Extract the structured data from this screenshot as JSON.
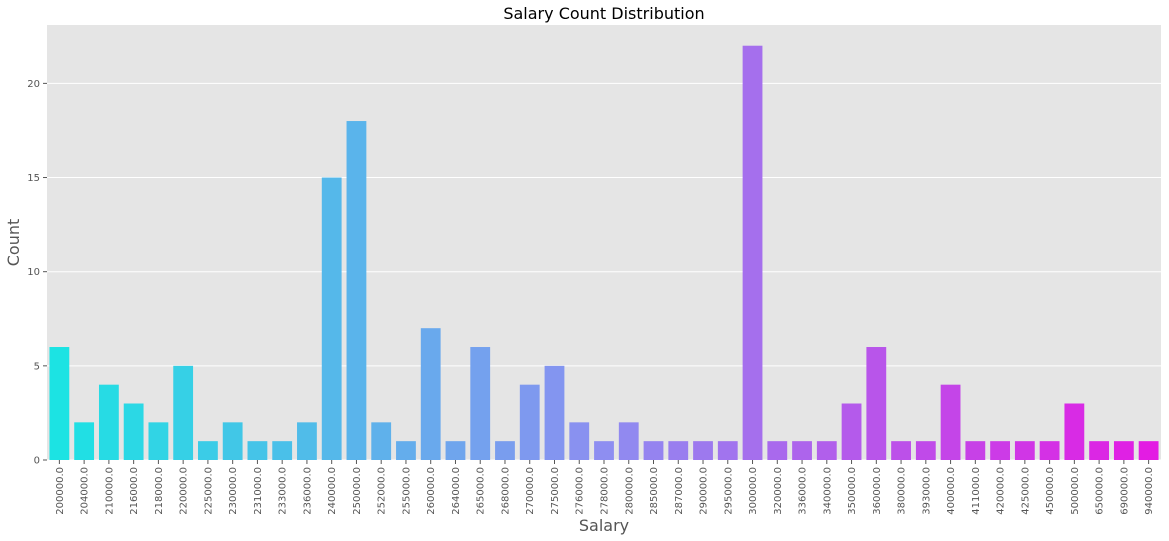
{
  "chart_data": {
    "type": "bar",
    "title": "Salary Count Distribution",
    "xlabel": "Salary",
    "ylabel": "Count",
    "ylim": [
      0,
      23.1
    ],
    "yticks": [
      0,
      5,
      10,
      15,
      20
    ],
    "categories": [
      "200000.0",
      "204000.0",
      "210000.0",
      "216000.0",
      "218000.0",
      "220000.0",
      "225000.0",
      "230000.0",
      "231000.0",
      "233000.0",
      "236000.0",
      "240000.0",
      "250000.0",
      "252000.0",
      "255000.0",
      "260000.0",
      "264000.0",
      "265000.0",
      "268000.0",
      "270000.0",
      "275000.0",
      "276000.0",
      "278000.0",
      "280000.0",
      "285000.0",
      "287000.0",
      "290000.0",
      "295000.0",
      "300000.0",
      "320000.0",
      "336000.0",
      "340000.0",
      "350000.0",
      "360000.0",
      "380000.0",
      "393000.0",
      "400000.0",
      "411000.0",
      "420000.0",
      "425000.0",
      "450000.0",
      "500000.0",
      "650000.0",
      "690000.0",
      "940000.0"
    ],
    "values": [
      6,
      2,
      4,
      3,
      2,
      5,
      1,
      2,
      1,
      1,
      2,
      15,
      18,
      2,
      1,
      7,
      1,
      6,
      1,
      4,
      5,
      2,
      1,
      2,
      1,
      1,
      1,
      1,
      22,
      1,
      1,
      1,
      3,
      6,
      1,
      1,
      4,
      1,
      1,
      1,
      1,
      3,
      1,
      1,
      1
    ],
    "palette": "cool",
    "grid": true,
    "background": "#e5e5e5"
  }
}
